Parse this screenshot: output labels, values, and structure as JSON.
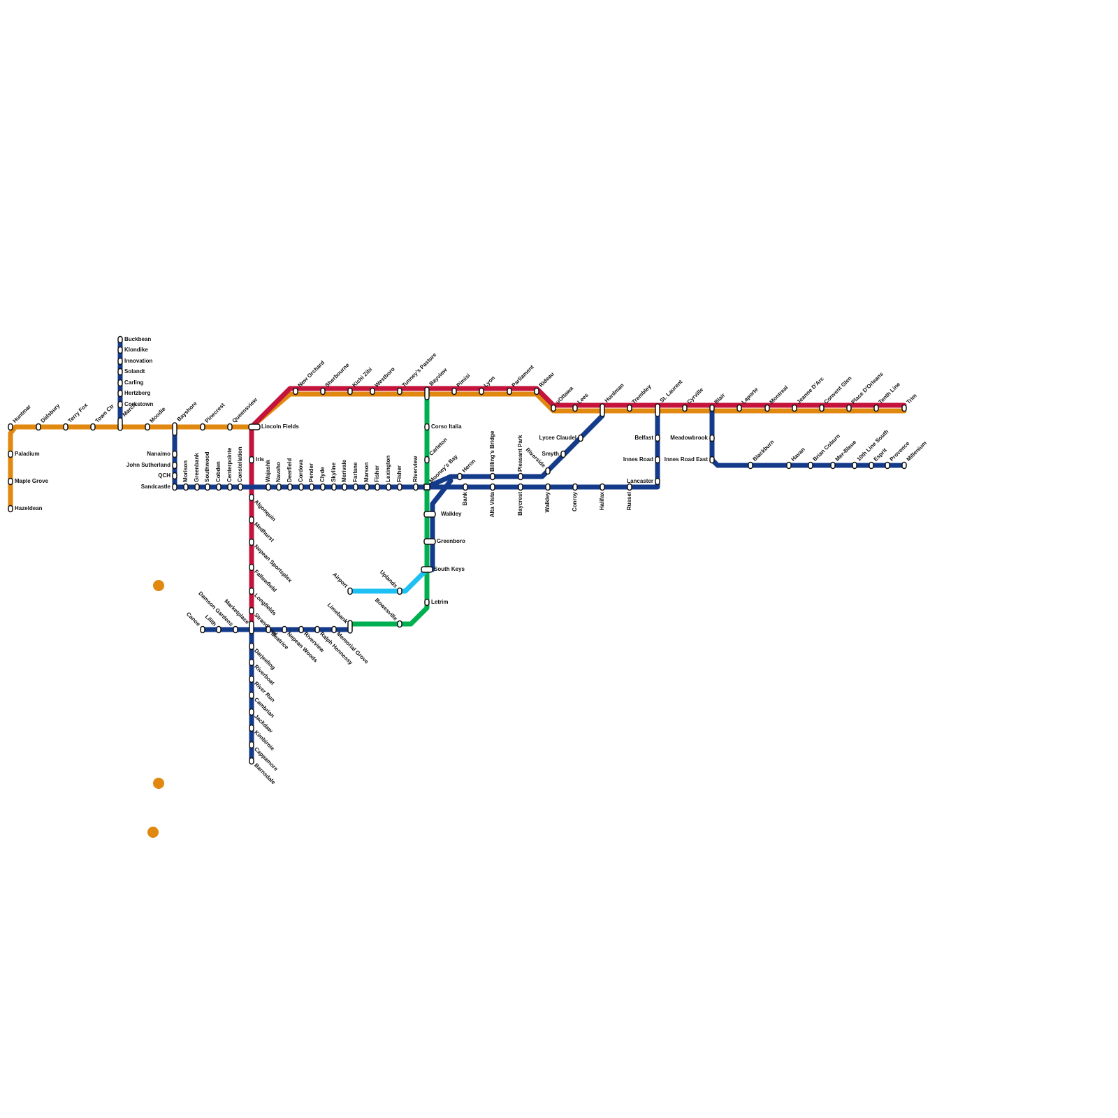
{
  "stations": [
    "Huntmar",
    "Paladium",
    "Maple Grove",
    "Hazeldean",
    "Didsbury",
    "Terry Fox",
    "Town Ctr",
    "March",
    "Moodie",
    "Bayshore",
    "Pinecrest",
    "Queensview",
    "Lincoln Fields",
    "New Orchard",
    "Sherbourne",
    "Kichi Zibi",
    "Westboro",
    "Tunney's Pasture",
    "Bayview",
    "Pimisi",
    "Lyon",
    "Parliament",
    "Rideau",
    "uOttawa",
    "Lees",
    "Hurdman",
    "Trembley",
    "St. Laurent",
    "Cyrville",
    "Blair",
    "Laporte",
    "Montreal",
    "Jeanne D'Arc",
    "Convent Glen",
    "Place D'Orleans",
    "Tenth Line",
    "Trim",
    "Buckbean",
    "Klondike",
    "Innovation",
    "Solandt",
    "Carling",
    "Hertzberg",
    "Corkstown",
    "Nanaimo",
    "John Sutherland",
    "QCH",
    "Sandcastle",
    "Morison",
    "Greenbank",
    "Southwood",
    "Cobden",
    "Centerpointe",
    "Constellation",
    "Iris",
    "Wajashk",
    "Navaho",
    "Deerfield",
    "Cordova",
    "Pender",
    "Clyde",
    "Skyline",
    "Merivale",
    "Farlane",
    "Marson",
    "Fisher",
    "Lexington",
    "Fisher",
    "Riverview",
    "Mooney's Bay",
    "Algonquin",
    "Medhurst",
    "Nepean Sportsplex",
    "Fallowfield",
    "Longfields",
    "Strandherd",
    "Canoe",
    "Lilith",
    "Damson Gardens",
    "Marketplace",
    "Beatrice",
    "Nepean Woods",
    "Riverview",
    "Ralph Hennessy",
    "Memorial Grove",
    "Limebank",
    "Darjeeling",
    "Riverboat",
    "River Run",
    "Cambrian",
    "Jackdaw",
    "Kimbirnie",
    "Cappamore",
    "Barnsdale",
    "Corso Italia",
    "Carleton",
    "Walkley",
    "Greenboro",
    "South Keys",
    "Letrim",
    "Bowesville",
    "Uplands",
    "Airport",
    "Heron",
    "Billing's Bridge",
    "Pleasant Park",
    "Riverside",
    "Smyth",
    "Lycee Claudel",
    "Bank",
    "Alta Vista",
    "Baycrest",
    "Walkley",
    "Conroy",
    "Halifax",
    "Russel",
    "Lancaster",
    "Innes Road",
    "Belfast",
    "Meadowbrook",
    "Innes Road East",
    "Blackburn",
    "Havan",
    "Brian Coburn",
    "Mer-Bleue",
    "10th Line South",
    "Esprit",
    "Provence",
    "Millenium"
  ]
}
